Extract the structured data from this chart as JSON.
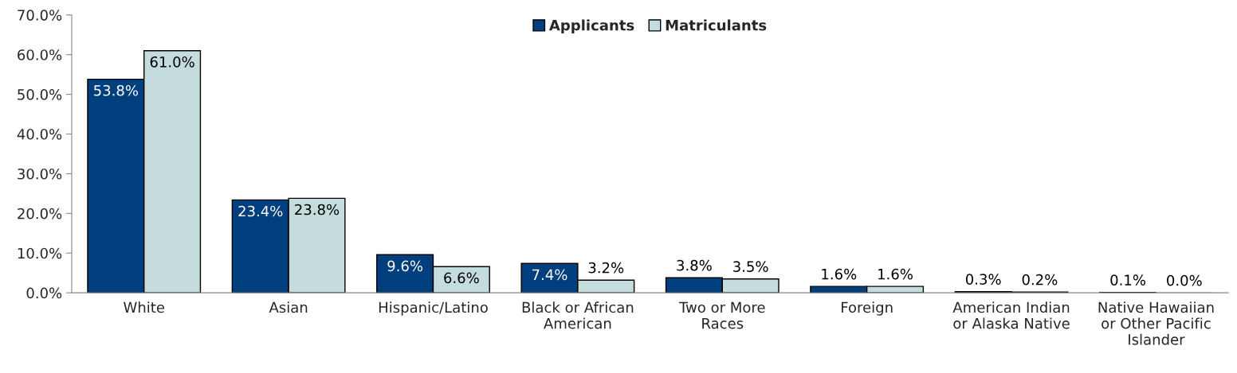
{
  "chart_data": {
    "type": "bar",
    "categories": [
      "White",
      "Asian",
      "Hispanic/Latino",
      "Black or African\nAmerican",
      "Two or More\nRaces",
      "Foreign",
      "American Indian\nor Alaska Native",
      "Native Hawaiian\nor Other Pacific\nIslander"
    ],
    "series": [
      {
        "name": "Applicants",
        "color": "#003f7d",
        "values": [
          53.8,
          23.4,
          9.6,
          7.4,
          3.8,
          1.6,
          0.3,
          0.1
        ],
        "value_labels": [
          "53.8%",
          "23.4%",
          "9.6%",
          "7.4%",
          "3.8%",
          "1.6%",
          "0.3%",
          "0.1%"
        ]
      },
      {
        "name": "Matriculants",
        "color": "#c5dcdc",
        "values": [
          61.0,
          23.8,
          6.6,
          3.2,
          3.5,
          1.6,
          0.2,
          0.0
        ],
        "value_labels": [
          "61.0%",
          "23.8%",
          "6.6%",
          "3.2%",
          "3.5%",
          "1.6%",
          "0.2%",
          "0.0%"
        ]
      }
    ],
    "ylim": [
      0,
      70
    ],
    "yticks": [
      {
        "value": 0,
        "label": "0.0%"
      },
      {
        "value": 10,
        "label": "10.0%"
      },
      {
        "value": 20,
        "label": "20.0%"
      },
      {
        "value": 30,
        "label": "30.0%"
      },
      {
        "value": 40,
        "label": "40.0%"
      },
      {
        "value": 50,
        "label": "50.0%"
      },
      {
        "value": 60,
        "label": "60.0%"
      },
      {
        "value": 70,
        "label": "70.0%"
      }
    ],
    "grid": false,
    "legend": "top"
  }
}
